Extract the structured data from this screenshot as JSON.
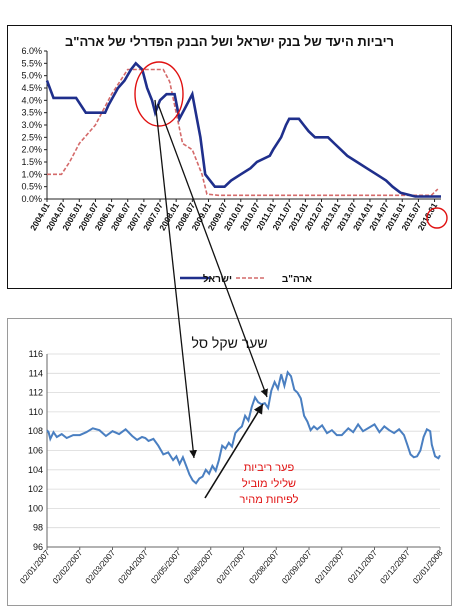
{
  "chart_data": [
    {
      "type": "line",
      "title": "ריביות היעד של בנק ישראל ושל הבנק הפדרלי של ארה\"ב",
      "ylim": [
        0,
        6
      ],
      "y_ticks": [
        "0.0%",
        "0.5%",
        "1.0%",
        "1.5%",
        "2.0%",
        "2.5%",
        "3.0%",
        "3.5%",
        "4.0%",
        "4.5%",
        "5.0%",
        "5.5%",
        "6.0%"
      ],
      "x_ticks": [
        "2004.01",
        "2004.07",
        "2005.01",
        "2005.07",
        "2006.01",
        "2006.07",
        "2007.01",
        "2007.07",
        "2008.01",
        "2008.07",
        "2009.01",
        "2009.07",
        "2010.01",
        "2010.07",
        "2011.01",
        "2011.07",
        "2012.01",
        "2012.07",
        "2013.01",
        "2013.07",
        "2014.01",
        "2014.07",
        "2015.01",
        "2015.07",
        "2016.01"
      ],
      "legend": "bottom",
      "colors": {
        "israel": "#1f2f8c",
        "usa": "#d46a6a",
        "highlight": "#e01010"
      },
      "series": [
        {
          "name": "ישראל",
          "style": "solid",
          "points": [
            [
              2004.0,
              4.8
            ],
            [
              2004.2,
              4.1
            ],
            [
              2004.9,
              4.1
            ],
            [
              2005.2,
              3.5
            ],
            [
              2005.8,
              3.5
            ],
            [
              2005.9,
              3.8
            ],
            [
              2006.2,
              4.5
            ],
            [
              2006.4,
              4.8
            ],
            [
              2006.6,
              5.25
            ],
            [
              2006.75,
              5.5
            ],
            [
              2006.95,
              5.25
            ],
            [
              2007.1,
              4.5
            ],
            [
              2007.25,
              4.0
            ],
            [
              2007.35,
              3.5
            ],
            [
              2007.5,
              4.0
            ],
            [
              2007.7,
              4.25
            ],
            [
              2007.95,
              4.25
            ],
            [
              2008.1,
              3.25
            ],
            [
              2008.3,
              3.75
            ],
            [
              2008.5,
              4.25
            ],
            [
              2008.75,
              2.5
            ],
            [
              2008.9,
              1.0
            ],
            [
              2009.2,
              0.5
            ],
            [
              2009.5,
              0.5
            ],
            [
              2009.7,
              0.75
            ],
            [
              2010.0,
              1.0
            ],
            [
              2010.3,
              1.25
            ],
            [
              2010.5,
              1.5
            ],
            [
              2010.9,
              1.75
            ],
            [
              2011.0,
              2.0
            ],
            [
              2011.25,
              2.5
            ],
            [
              2011.4,
              3.0
            ],
            [
              2011.5,
              3.25
            ],
            [
              2011.8,
              3.25
            ],
            [
              2011.95,
              3.0
            ],
            [
              2012.1,
              2.75
            ],
            [
              2012.3,
              2.5
            ],
            [
              2012.7,
              2.5
            ],
            [
              2012.9,
              2.25
            ],
            [
              2013.1,
              2.0
            ],
            [
              2013.3,
              1.75
            ],
            [
              2013.6,
              1.5
            ],
            [
              2013.9,
              1.25
            ],
            [
              2014.2,
              1.0
            ],
            [
              2014.5,
              0.75
            ],
            [
              2014.7,
              0.5
            ],
            [
              2014.95,
              0.25
            ],
            [
              2015.4,
              0.1
            ],
            [
              2016.2,
              0.1
            ]
          ]
        },
        {
          "name": "ארה\"ב",
          "style": "dashed",
          "points": [
            [
              2004.0,
              1.0
            ],
            [
              2004.45,
              1.0
            ],
            [
              2004.7,
              1.5
            ],
            [
              2005.0,
              2.25
            ],
            [
              2005.5,
              3.0
            ],
            [
              2006.0,
              4.25
            ],
            [
              2006.5,
              5.25
            ],
            [
              2007.6,
              5.25
            ],
            [
              2007.8,
              4.75
            ],
            [
              2008.0,
              3.5
            ],
            [
              2008.2,
              2.25
            ],
            [
              2008.5,
              2.0
            ],
            [
              2008.8,
              1.0
            ],
            [
              2008.95,
              0.2
            ],
            [
              2009.3,
              0.15
            ],
            [
              2015.9,
              0.15
            ],
            [
              2016.1,
              0.4
            ]
          ]
        }
      ]
    },
    {
      "type": "line",
      "title": "שער שקל סל",
      "ylim": [
        96,
        116
      ],
      "y_ticks": [
        "96",
        "98",
        "100",
        "102",
        "104",
        "106",
        "108",
        "110",
        "112",
        "114",
        "116"
      ],
      "x_ticks": [
        "02/01/2007",
        "02/02/2007",
        "02/03/2007",
        "02/04/2007",
        "02/05/2007",
        "02/06/2007",
        "02/07/2007",
        "02/08/2007",
        "02/09/2007",
        "02/10/2007",
        "02/11/2007",
        "02/12/2007",
        "02/01/2008"
      ],
      "annotation": "פער ריביות שלילי מוביל לפיחות מהיר",
      "colors": {
        "line": "#4a7fc1",
        "annotation": "#e01010"
      },
      "series": [
        {
          "name": "",
          "points": [
            [
              0,
              108.1
            ],
            [
              0.05,
              107.9
            ],
            [
              0.1,
              107.2
            ],
            [
              0.2,
              107.9
            ],
            [
              0.3,
              107.4
            ],
            [
              0.45,
              107.7
            ],
            [
              0.6,
              107.3
            ],
            [
              0.8,
              107.6
            ],
            [
              1.0,
              107.6
            ],
            [
              1.2,
              107.9
            ],
            [
              1.4,
              108.3
            ],
            [
              1.6,
              108.1
            ],
            [
              1.8,
              107.5
            ],
            [
              2.0,
              108.0
            ],
            [
              2.2,
              107.7
            ],
            [
              2.4,
              108.2
            ],
            [
              2.6,
              107.5
            ],
            [
              2.75,
              107.1
            ],
            [
              2.9,
              107.4
            ],
            [
              3.0,
              107.3
            ],
            [
              3.1,
              107.0
            ],
            [
              3.25,
              107.2
            ],
            [
              3.4,
              106.5
            ],
            [
              3.55,
              105.6
            ],
            [
              3.7,
              105.8
            ],
            [
              3.85,
              105.0
            ],
            [
              3.95,
              105.4
            ],
            [
              4.05,
              104.6
            ],
            [
              4.15,
              105.3
            ],
            [
              4.25,
              104.4
            ],
            [
              4.35,
              103.5
            ],
            [
              4.45,
              102.9
            ],
            [
              4.55,
              102.6
            ],
            [
              4.65,
              103.1
            ],
            [
              4.75,
              103.3
            ],
            [
              4.85,
              104.0
            ],
            [
              4.95,
              103.6
            ],
            [
              5.05,
              104.4
            ],
            [
              5.15,
              103.9
            ],
            [
              5.25,
              105.0
            ],
            [
              5.35,
              106.5
            ],
            [
              5.45,
              106.2
            ],
            [
              5.55,
              106.8
            ],
            [
              5.65,
              106.4
            ],
            [
              5.75,
              107.8
            ],
            [
              5.85,
              108.2
            ],
            [
              5.95,
              108.5
            ],
            [
              6.05,
              109.6
            ],
            [
              6.15,
              109.1
            ],
            [
              6.25,
              110.5
            ],
            [
              6.35,
              111.5
            ],
            [
              6.45,
              111.0
            ],
            [
              6.55,
              110.8
            ],
            [
              6.65,
              110.9
            ],
            [
              6.75,
              110.4
            ],
            [
              6.85,
              112.2
            ],
            [
              6.95,
              113.1
            ],
            [
              7.05,
              112.4
            ],
            [
              7.15,
              113.9
            ],
            [
              7.25,
              112.7
            ],
            [
              7.35,
              114.1
            ],
            [
              7.45,
              113.7
            ],
            [
              7.55,
              112.3
            ],
            [
              7.65,
              112.0
            ],
            [
              7.75,
              111.4
            ],
            [
              7.85,
              109.6
            ],
            [
              7.95,
              109.0
            ],
            [
              8.05,
              108.1
            ],
            [
              8.15,
              108.5
            ],
            [
              8.25,
              108.2
            ],
            [
              8.4,
              108.6
            ],
            [
              8.55,
              107.8
            ],
            [
              8.7,
              108.1
            ],
            [
              8.85,
              107.6
            ],
            [
              9.0,
              107.6
            ],
            [
              9.2,
              108.3
            ],
            [
              9.35,
              107.9
            ],
            [
              9.5,
              108.7
            ],
            [
              9.65,
              108.0
            ],
            [
              9.8,
              108.3
            ],
            [
              10.0,
              108.7
            ],
            [
              10.15,
              107.9
            ],
            [
              10.3,
              108.5
            ],
            [
              10.45,
              108.1
            ],
            [
              10.6,
              107.8
            ],
            [
              10.75,
              108.2
            ],
            [
              10.9,
              107.6
            ],
            [
              11.0,
              106.6
            ],
            [
              11.1,
              105.6
            ],
            [
              11.2,
              105.3
            ],
            [
              11.3,
              105.4
            ],
            [
              11.4,
              106.0
            ],
            [
              11.5,
              107.4
            ],
            [
              11.6,
              108.2
            ],
            [
              11.7,
              108.0
            ],
            [
              11.75,
              106.6
            ],
            [
              11.85,
              105.4
            ],
            [
              11.95,
              105.2
            ],
            [
              12.0,
              105.5
            ]
          ]
        }
      ]
    }
  ]
}
